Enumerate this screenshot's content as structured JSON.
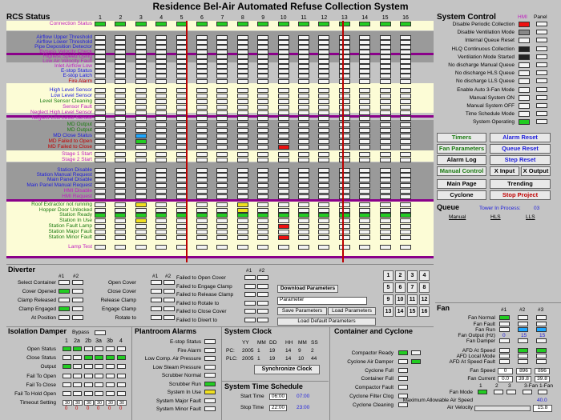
{
  "title": "Residence Bel-Air Automated Refuse Collection System",
  "rcs": {
    "title": "RCS Status",
    "cols": [
      "1",
      "2",
      "3",
      "4",
      "5",
      "6",
      "7",
      "8",
      "9",
      "10",
      "11",
      "12",
      "13",
      "14",
      "15",
      "16"
    ],
    "rows": [
      {
        "label": "Connection Status",
        "color": "mag",
        "states": [
          "g",
          "g",
          "g",
          "g",
          "g",
          "g",
          "g",
          "g",
          "g",
          "g",
          "g",
          "g",
          "g",
          "g",
          "g",
          "g"
        ]
      },
      {
        "label": "Airflow Upper Threshold",
        "color": "blue"
      },
      {
        "label": "Airflow Lower Threshold",
        "color": "blue"
      },
      {
        "label": "Pipe Deposition Detector",
        "color": "blue"
      },
      {
        "label": "Bypass Velocity Check",
        "color": "mag"
      },
      {
        "label": "Highest Speed Using",
        "color": "mag"
      },
      {
        "label": "Low Air Velocity Fault",
        "color": "mag"
      },
      {
        "label": "Inlet Airflow Low",
        "color": "mag"
      },
      {
        "label": "E-stop Status",
        "color": "blue"
      },
      {
        "label": "E-stop Latch",
        "color": "blue"
      },
      {
        "label": "Fire Alarm",
        "color": "redt"
      },
      {
        "label": "High Level Sensor",
        "color": "blue"
      },
      {
        "label": "Low Level Sensor",
        "color": "blue"
      },
      {
        "label": "Level Sensor Cleaning",
        "color": "grn"
      },
      {
        "label": "Sensor Fault",
        "color": "mag"
      },
      {
        "label": "Neglect High Level Sensor",
        "color": "mag"
      },
      {
        "label": "Neglect Low Level Sensor",
        "color": "mag"
      },
      {
        "label": "MD Output",
        "color": "grn"
      },
      {
        "label": "MD Output",
        "color": "grn"
      },
      {
        "label": "MD Close Status",
        "color": "blue"
      },
      {
        "label": "MD Failed to Open",
        "color": "redt"
      },
      {
        "label": "MD Failed to Close",
        "color": "redt"
      },
      {
        "label": "Stage 1 Start",
        "color": "mag"
      },
      {
        "label": "Stage 2 Start",
        "color": "mag"
      },
      {
        "label": "Station Disable",
        "color": "blue"
      },
      {
        "label": "Station Manual Request",
        "color": "blue"
      },
      {
        "label": "Main Panel Disable",
        "color": "blue"
      },
      {
        "label": "Main Panel Manual Request",
        "color": "blue"
      },
      {
        "label": "HMI Disable",
        "color": "mag"
      },
      {
        "label": "HMI Request",
        "color": "mag"
      },
      {
        "label": "Roof Extractor not running",
        "color": "grn"
      },
      {
        "label": "Hopper Door Unlocked",
        "color": "grn"
      },
      {
        "label": "Station Ready",
        "color": "grn"
      },
      {
        "label": "Station In Use",
        "color": "grn"
      },
      {
        "label": "Station Fault Lamp",
        "color": "grn"
      },
      {
        "label": "Station Major Fault",
        "color": "grn"
      },
      {
        "label": "Station Minor Fault",
        "color": "grn"
      },
      {
        "label": "Lamp Test",
        "color": "mag"
      }
    ]
  },
  "system_control": {
    "title": "System Control",
    "col_hmi": "HMI",
    "col_panel": "Panel",
    "items": [
      "Disable Periodic Collection",
      "Disable Ventilation Mode",
      "Internal Queue Reset",
      "HLQ Continuous Collection",
      "Ventilation Mode Started",
      "No discharge Manual Queue",
      "No discharge HLS Queue",
      "No discharge LLS Queue",
      "Enable Auto 3-Fan Mode",
      "Manual System ON",
      "Manual System OFF",
      "Time Schedule Mode",
      "System Operating"
    ]
  },
  "buttons": {
    "timers": "Timers",
    "alarm_reset": "Alarm Reset",
    "fan_params": "Fan Parameters",
    "queue_reset": "Queue Reset",
    "alarm_log": "Alarm Log",
    "step_reset": "Step Reset",
    "manual_control": "Manual Control",
    "x_input": "X Input",
    "x_output": "X Output",
    "main_page": "Main Page",
    "trending": "Trending",
    "cyclone": "Cyclone",
    "stop_project": "Stop Project"
  },
  "queue": {
    "title": "Queue",
    "towers_label": "Tower In Process:",
    "towers_value": "03",
    "manual": "Manual",
    "hls": "HLS",
    "lls": "LLS"
  },
  "diverter": {
    "title": "Diverter",
    "c1": "#1",
    "c2": "#2",
    "left": [
      "Select Container",
      "Cover Opened",
      "Clamp Released",
      "Clamp Engaged",
      "At Position"
    ],
    "mid": [
      "Open Cover",
      "Close Cover",
      "Release Clamp",
      "Engage Clamp",
      "Rotate to"
    ],
    "right": [
      "Failed to Open Cover",
      "Failed to Engage Clamp",
      "Failed to Release Clamp",
      "Failed to Rotate to",
      "Failed to Close Cover",
      "Failed to Divert to"
    ]
  },
  "params": {
    "download": "Download Parameters",
    "input": "Parameter",
    "save": "Save Parameters",
    "load": "Load Parameters",
    "load_default": "Load Default Parameters",
    "keys": [
      "1",
      "2",
      "3",
      "4",
      "5",
      "6",
      "7",
      "8",
      "9",
      "10",
      "11",
      "12",
      "13",
      "14",
      "15",
      "16"
    ]
  },
  "isolation": {
    "title": "Isolation Damper",
    "bypass": "Bypass",
    "cols": [
      "1",
      "2a",
      "2b",
      "3a",
      "3b",
      "4"
    ],
    "rows": [
      "Open Status",
      "Close Status",
      "Output",
      "Fail To Open",
      "Fail To Close",
      "Fail To Hold Open",
      "Timeout Setting"
    ],
    "timeout": [
      "30",
      "30",
      "30",
      "30",
      "30",
      "30"
    ],
    "timeout_sub": [
      "0",
      "0",
      "0",
      "0",
      "0",
      "0"
    ]
  },
  "plantroom": {
    "title": "Plantroom Alarms",
    "items": [
      "E-stop Status",
      "Fire Alarm",
      "Low Comp. Air Pressure",
      "Low Steam Pressure",
      "Scrubber Normal",
      "Scrubber Run",
      "System In Use",
      "System Major Fault",
      "System Minor Fault"
    ]
  },
  "clock": {
    "title": "System Clock",
    "cols": [
      "YY",
      "MM",
      "DD",
      "HH",
      "MM",
      "SS"
    ],
    "pc_label": "PC:",
    "pc": [
      "2005",
      "1",
      "19",
      "14",
      "9",
      "2"
    ],
    "plc_label": "PLC:",
    "plc": [
      "2005",
      "1",
      "19",
      "14",
      "10",
      "44"
    ],
    "sync": "Synchronize Clock"
  },
  "schedule": {
    "title": "System Time Schedule",
    "start_label": "Start Time",
    "start_set": "06:00",
    "start": "07:00",
    "stop_label": "Stop Time",
    "stop_set": "22:00",
    "stop": "23:00"
  },
  "container": {
    "title": "Container and Cyclone",
    "items": [
      "Compactor Ready",
      "Cyclone Air Damper",
      "Cyclone Full",
      "Container Full",
      "Compactor Fault",
      "Cyclone Filter Clog",
      "Cyclone Cleaning"
    ]
  },
  "fan": {
    "title": "Fan",
    "cols": [
      "#1",
      "#2",
      "#3"
    ],
    "rows": [
      "Fan Normal",
      "Fan Fault",
      "Fan Run",
      "Fan Output (Hz)",
      "Fan Damper",
      "AFD At Speed",
      "AFD Local Mode",
      "AFD At Speed Fault",
      "Fan Speed",
      "Fan Current",
      "Fan Mode",
      "Maximum Allowable Air Speed",
      "Air Velocity"
    ],
    "hz": [
      "0",
      "15",
      "15"
    ],
    "speed": [
      "0",
      "896",
      "896"
    ],
    "current": [
      "0.0",
      "39.8",
      "39.8"
    ],
    "mode_opts": [
      "1",
      "2",
      "3",
      "3-Fan",
      "1-Fan"
    ],
    "max_air": "40.0",
    "air_velocity": "15.8"
  }
}
